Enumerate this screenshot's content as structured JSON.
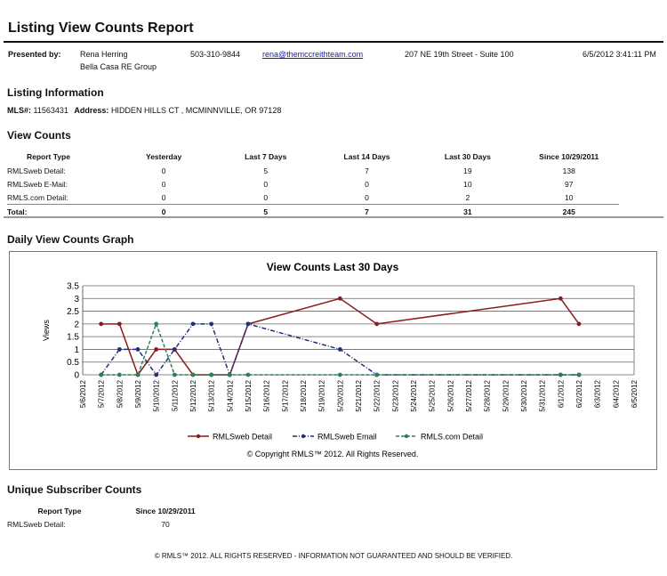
{
  "report": {
    "title": "Listing View Counts Report"
  },
  "presenter": {
    "label": "Presented by:",
    "name": "Rena Herring",
    "company": "Bella Casa RE Group",
    "phone": "503-310-9844",
    "email": "rena@themccreithteam.com",
    "address": "207 NE 19th Street - Suite 100",
    "datetime": "6/5/2012 3:41:11 PM"
  },
  "listing": {
    "heading": "Listing Information",
    "mls_label": "MLS#:",
    "mls": "11563431",
    "address_label": "Address:",
    "address": "HIDDEN HILLS CT , MCMINNVILLE, OR 97128"
  },
  "view_counts": {
    "heading": "View Counts",
    "columns": [
      "Report Type",
      "Yesterday",
      "Last 7 Days",
      "Last 14 Days",
      "Last 30 Days",
      "Since 10/29/2011"
    ],
    "rows": [
      {
        "type": "RMLSweb Detail:",
        "cells": [
          "0",
          "5",
          "7",
          "19",
          "138"
        ]
      },
      {
        "type": "RMLSweb E-Mail:",
        "cells": [
          "0",
          "0",
          "0",
          "10",
          "97"
        ]
      },
      {
        "type": "RMLS.com Detail:",
        "cells": [
          "0",
          "0",
          "0",
          "2",
          "10"
        ]
      },
      {
        "type": "Total:",
        "cells": [
          "0",
          "5",
          "7",
          "31",
          "245"
        ]
      }
    ]
  },
  "graph": {
    "heading": "Daily View Counts Graph"
  },
  "chart_data": {
    "type": "line",
    "title": "View Counts Last 30 Days",
    "ylabel": "Views",
    "xlabel": "",
    "ylim": [
      0,
      3.5
    ],
    "yticks": [
      "0",
      "0.5",
      "1",
      "1.5",
      "2",
      "2.5",
      "3",
      "3.5"
    ],
    "grid": true,
    "legend_position": "bottom",
    "categories": [
      "5/6/2012",
      "5/7/2012",
      "5/8/2012",
      "5/9/2012",
      "5/10/2012",
      "5/11/2012",
      "5/12/2012",
      "5/13/2012",
      "5/14/2012",
      "5/15/2012",
      "5/16/2012",
      "5/17/2012",
      "5/18/2012",
      "5/19/2012",
      "5/20/2012",
      "5/21/2012",
      "5/22/2012",
      "5/23/2012",
      "5/24/2012",
      "5/25/2012",
      "5/26/2012",
      "5/27/2012",
      "5/28/2012",
      "5/29/2012",
      "5/30/2012",
      "5/31/2012",
      "6/1/2012",
      "6/2/2012",
      "6/3/2012",
      "6/4/2012",
      "6/5/2012"
    ],
    "series": [
      {
        "name": "RMLSweb Detail",
        "color": "#8b1a1a",
        "dash": "solid",
        "points": [
          [
            1,
            2
          ],
          [
            2,
            2
          ],
          [
            3,
            0
          ],
          [
            4,
            1
          ],
          [
            5,
            1
          ],
          [
            6,
            0
          ],
          [
            7,
            0
          ],
          [
            8,
            0
          ],
          [
            9,
            2
          ],
          [
            14,
            3
          ],
          [
            16,
            2
          ],
          [
            26,
            3
          ],
          [
            27,
            2
          ]
        ]
      },
      {
        "name": "RMLSweb Email",
        "color": "#1f2f7a",
        "dash": "dashdot",
        "points": [
          [
            1,
            0
          ],
          [
            2,
            1
          ],
          [
            3,
            1
          ],
          [
            4,
            0
          ],
          [
            5,
            1
          ],
          [
            6,
            2
          ],
          [
            7,
            2
          ],
          [
            8,
            0
          ],
          [
            9,
            2
          ],
          [
            14,
            1
          ],
          [
            16,
            0
          ],
          [
            26,
            0
          ],
          [
            27,
            0
          ]
        ]
      },
      {
        "name": "RMLS.com Detail",
        "color": "#2e7d5b",
        "dash": "dash",
        "points": [
          [
            1,
            0
          ],
          [
            2,
            0
          ],
          [
            3,
            0
          ],
          [
            4,
            2
          ],
          [
            5,
            0
          ],
          [
            6,
            0
          ],
          [
            7,
            0
          ],
          [
            8,
            0
          ],
          [
            9,
            0
          ],
          [
            14,
            0
          ],
          [
            16,
            0
          ],
          [
            26,
            0
          ],
          [
            27,
            0
          ]
        ]
      }
    ],
    "copyright": "© Copyright RMLS™ 2012.  All Rights Reserved."
  },
  "subscriber": {
    "heading": "Unique Subscriber Counts",
    "columns": [
      "Report Type",
      "Since 10/29/2011"
    ],
    "rows": [
      {
        "type": "RMLSweb Detail:",
        "count": "70"
      }
    ]
  },
  "footer": {
    "text": "© RMLS™ 2012. ALL RIGHTS RESERVED - INFORMATION NOT GUARANTEED AND SHOULD BE VERIFIED."
  }
}
